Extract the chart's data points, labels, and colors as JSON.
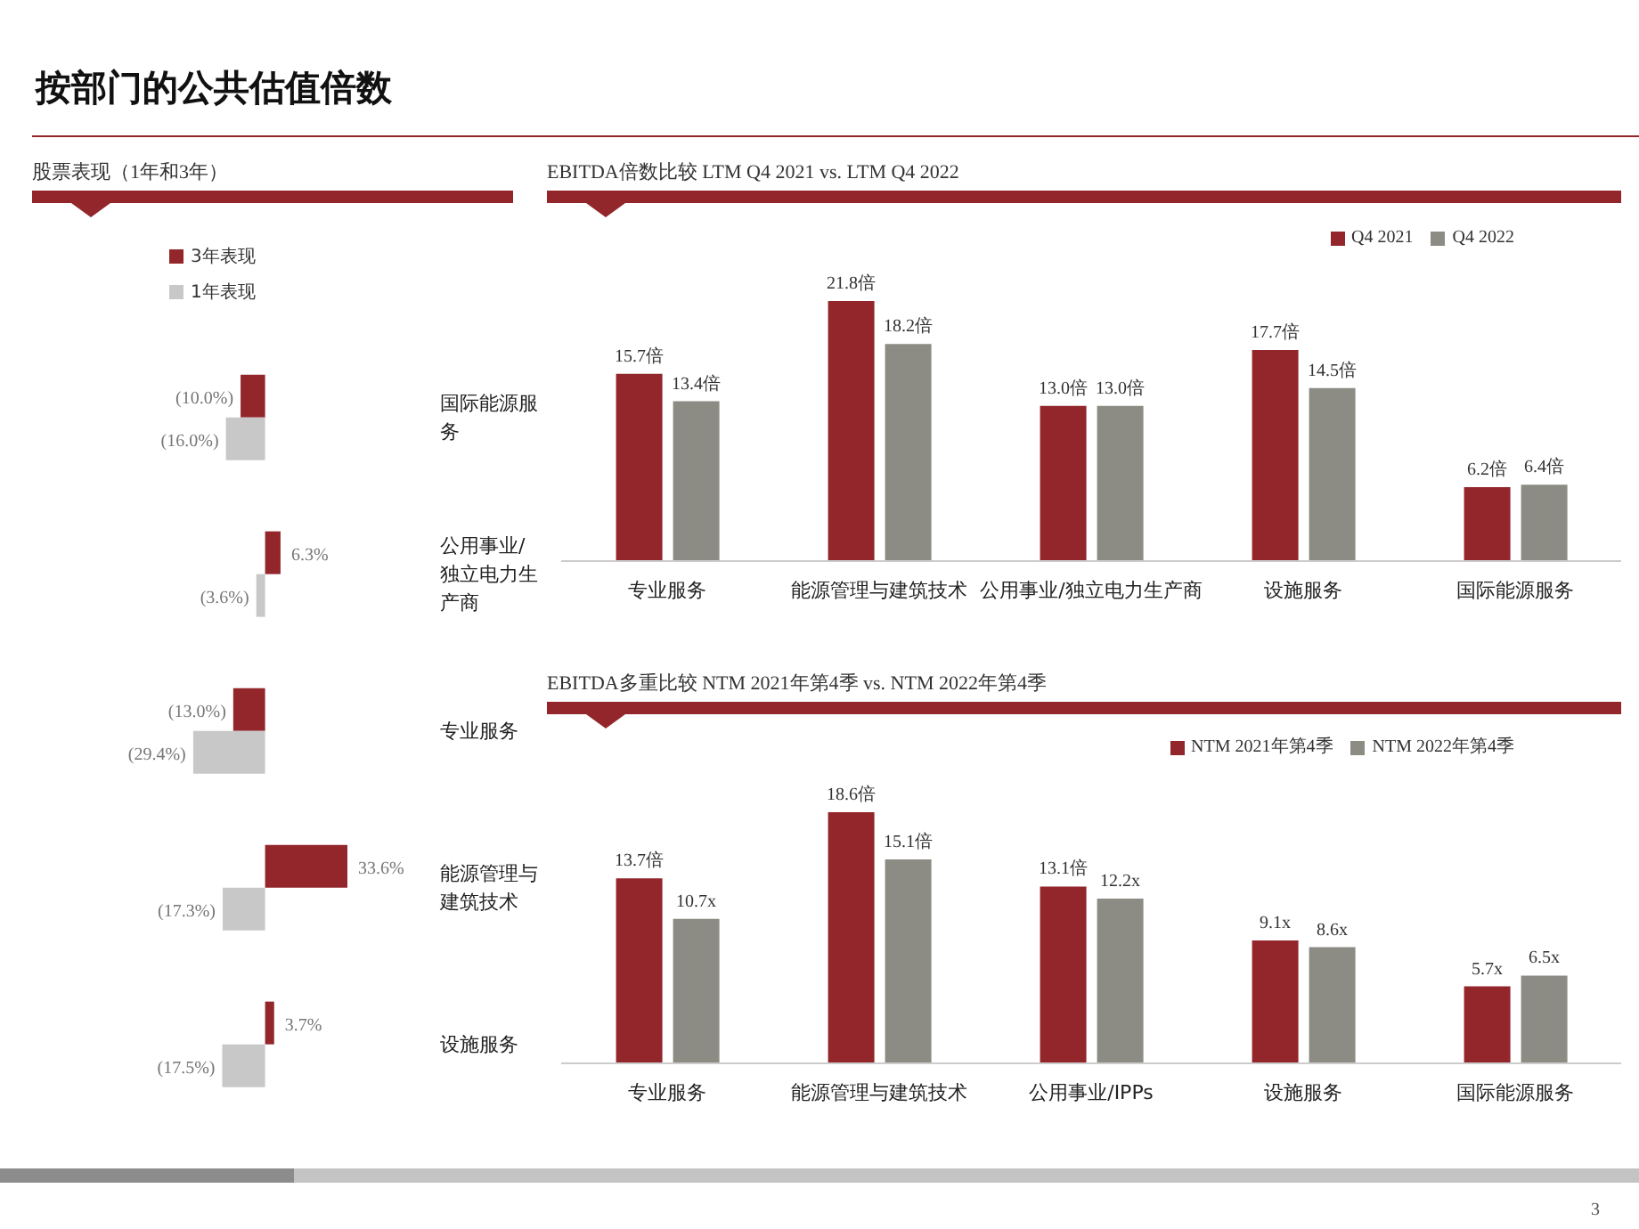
{
  "chart_data": [
    {
      "type": "bar",
      "title": "按部门的公共估值倍数",
      "subtitle": "股票表现（1年和3年）",
      "orientation": "horizontal",
      "categories": [
        "国际能源服务",
        "公用事业/独立电力生产商",
        "专业服务",
        "能源管理与建筑技术",
        "设施服务"
      ],
      "series": [
        {
          "name": "3年表现",
          "color": "#93262b",
          "values": [
            -10.0,
            6.3,
            -13.0,
            33.6,
            3.7
          ],
          "value_labels": [
            "(10.0%)",
            "6.3%",
            "(13.0%)",
            "33.6%",
            "3.7%"
          ]
        },
        {
          "name": "1年表现",
          "color": "#c8c8c8",
          "values": [
            -16.0,
            -3.6,
            -29.4,
            -17.3,
            -17.5
          ],
          "value_labels": [
            "(16.0%)",
            "(3.6%)",
            "(29.4%)",
            "(17.3%)",
            "(17.5%)"
          ]
        }
      ],
      "legend": "top left",
      "tick_labels": "y"
    },
    {
      "type": "bar",
      "title": "EBITDA倍数比较 LTM Q4 2021 vs. LTM Q4 2022",
      "categories": [
        "专业服务",
        "能源管理与建筑技术",
        "公用事业/独立电力生产商",
        "设施服务",
        "国际能源服务"
      ],
      "series": [
        {
          "name": "Q4 2021",
          "color": "#93262b",
          "values": [
            15.7,
            21.8,
            13.0,
            17.7,
            6.2
          ],
          "value_labels": [
            "15.7倍",
            "21.8倍",
            "13.0倍",
            "17.7倍",
            "6.2倍"
          ]
        },
        {
          "name": "Q4 2022",
          "color": "#8c8c84",
          "values": [
            13.4,
            18.2,
            13.0,
            14.5,
            6.4
          ],
          "value_labels": [
            "13.4倍",
            "18.2倍",
            "13.0倍",
            "14.5倍",
            "6.4倍"
          ]
        }
      ],
      "legend": "top right",
      "tick_labels": "x"
    },
    {
      "type": "bar",
      "title": "EBITDA多重比较 NTM 2021年第4季 vs. NTM 2022年第4季",
      "categories": [
        "专业服务",
        "能源管理与建筑技术",
        "公用事业/IPPs",
        "设施服务",
        "国际能源服务"
      ],
      "series": [
        {
          "name": "NTM 2021年第4季",
          "color": "#93262b",
          "values": [
            13.7,
            18.6,
            13.1,
            9.1,
            5.7
          ],
          "value_labels": [
            "13.7倍",
            "18.6倍",
            "13.1倍",
            "9.1x",
            "5.7x"
          ]
        },
        {
          "name": "NTM 2022年第4季",
          "color": "#8c8c84",
          "values": [
            10.7,
            15.1,
            12.2,
            8.6,
            6.5
          ],
          "value_labels": [
            "10.7x",
            "15.1倍",
            "12.2x",
            "8.6x",
            "6.5x"
          ]
        }
      ],
      "legend": "top right",
      "tick_labels": "x",
      "annotations": [
        "3"
      ]
    }
  ]
}
